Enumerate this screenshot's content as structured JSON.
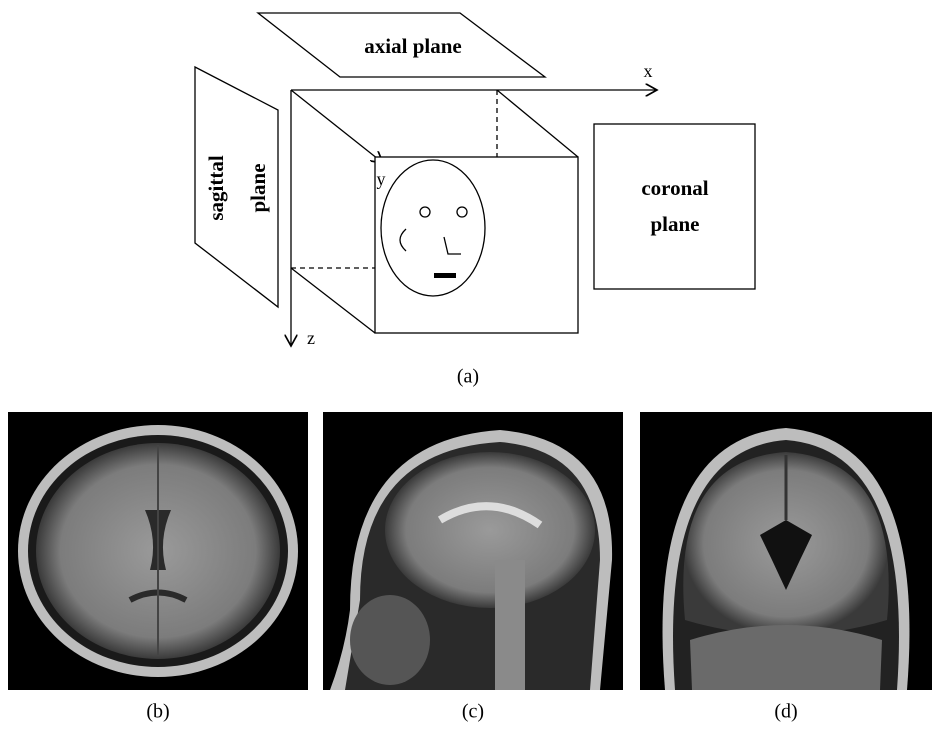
{
  "diagram": {
    "planes": {
      "axial": "axial plane",
      "sagittal": [
        "sagittal",
        "plane"
      ],
      "coronal": [
        "coronal",
        "plane"
      ]
    },
    "axes": {
      "x": "x",
      "y": "y",
      "z": "z"
    },
    "captions": [
      "(a)",
      "(b)",
      "(c)",
      "(d)"
    ]
  }
}
